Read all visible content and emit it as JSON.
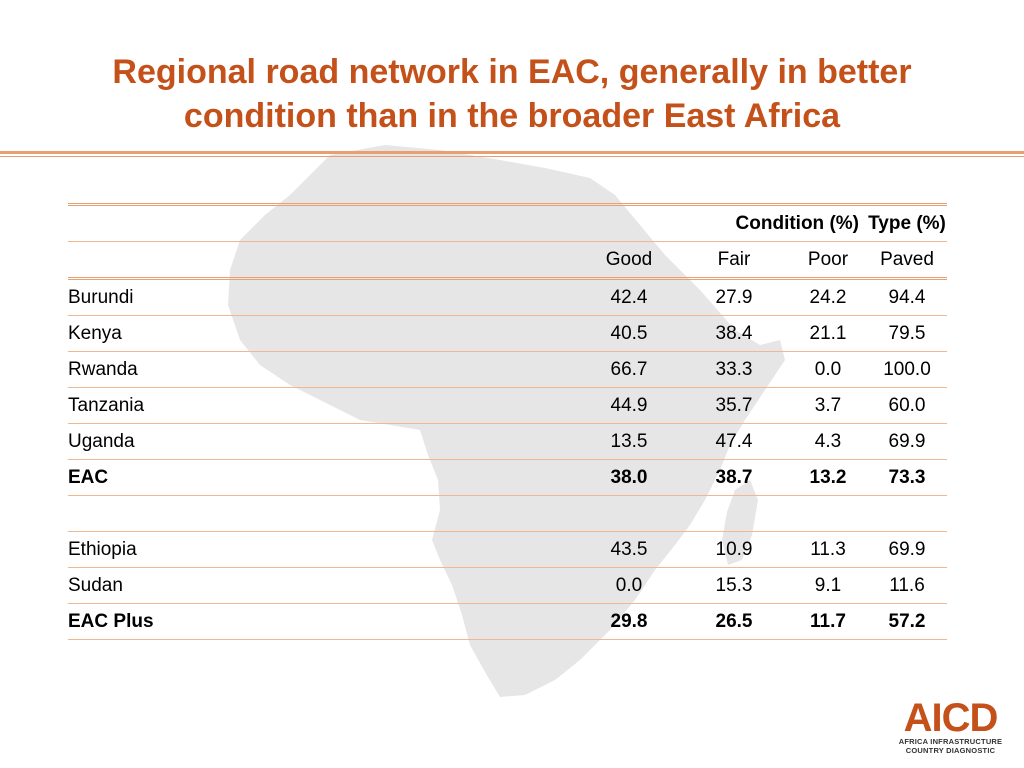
{
  "slide": {
    "title_line1": "Regional road network in EAC, generally in better",
    "title_line2": "condition than in the broader East Africa"
  },
  "table": {
    "group_headers": {
      "condition": "Condition (%)",
      "type": "Type (%)"
    },
    "columns": [
      "Good",
      "Fair",
      "Poor",
      "Paved"
    ],
    "rows": [
      {
        "name": "Burundi",
        "values": [
          "42.4",
          "27.9",
          "24.2",
          "94.4"
        ]
      },
      {
        "name": "Kenya",
        "values": [
          "40.5",
          "38.4",
          "21.1",
          "79.5"
        ]
      },
      {
        "name": "Rwanda",
        "values": [
          "66.7",
          "33.3",
          "0.0",
          "100.0"
        ]
      },
      {
        "name": "Tanzania",
        "values": [
          "44.9",
          "35.7",
          "3.7",
          "60.0"
        ]
      },
      {
        "name": "Uganda",
        "values": [
          "13.5",
          "47.4",
          "4.3",
          "69.9"
        ]
      },
      {
        "name": "EAC",
        "values": [
          "38.0",
          "38.7",
          "13.2",
          "73.3"
        ]
      },
      {
        "name": "Ethiopia",
        "values": [
          "43.5",
          "10.9",
          "11.3",
          "69.9"
        ]
      },
      {
        "name": "Sudan",
        "values": [
          "0.0",
          "15.3",
          "9.1",
          "11.6"
        ]
      },
      {
        "name": "EAC Plus",
        "values": [
          "29.8",
          "26.5",
          "11.7",
          "57.2"
        ]
      }
    ]
  },
  "logo": {
    "wordmark": "AICD",
    "line1": "AFRICA INFRASTRUCTURE",
    "line2": "COUNTRY DIAGNOSTIC",
    "color": "#c4501a"
  },
  "theme": {
    "title_color": "#c4501a",
    "rule_color": "#e8a070",
    "map_color": "#e6e6e6"
  }
}
